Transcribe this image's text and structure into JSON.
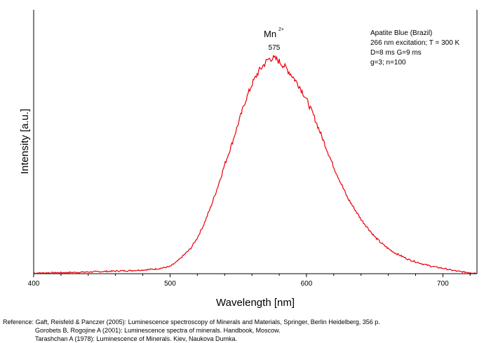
{
  "chart_data": {
    "type": "line",
    "title": "",
    "xlabel": "Wavelength [nm]",
    "ylabel": "Intensity [a.u.]",
    "xlim": [
      400,
      725
    ],
    "ylim": [
      0,
      1
    ],
    "y_ticks_labeled": false,
    "grid": false,
    "xticks": [
      400,
      500,
      600,
      700
    ],
    "line_color": "#e8000b",
    "series": [
      {
        "values_x": [
          400,
          410,
          420,
          430,
          440,
          450,
          460,
          470,
          480,
          490,
          495,
          500,
          505,
          510,
          515,
          520,
          525,
          530,
          535,
          540,
          545,
          550,
          555,
          560,
          565,
          570,
          572,
          575,
          578,
          580,
          585,
          590,
          595,
          600,
          605,
          610,
          615,
          620,
          625,
          630,
          635,
          640,
          645,
          650,
          655,
          660,
          665,
          670,
          675,
          680,
          685,
          690,
          695,
          700,
          705,
          710,
          715,
          720,
          725
        ],
        "values_y": [
          0.003,
          0.004,
          0.005,
          0.006,
          0.008,
          0.01,
          0.012,
          0.014,
          0.017,
          0.022,
          0.027,
          0.033,
          0.055,
          0.085,
          0.115,
          0.165,
          0.23,
          0.31,
          0.4,
          0.5,
          0.59,
          0.69,
          0.79,
          0.87,
          0.93,
          0.97,
          0.985,
          0.99,
          0.985,
          0.975,
          0.945,
          0.905,
          0.86,
          0.8,
          0.73,
          0.65,
          0.57,
          0.49,
          0.42,
          0.35,
          0.3,
          0.25,
          0.21,
          0.17,
          0.14,
          0.115,
          0.095,
          0.08,
          0.065,
          0.055,
          0.045,
          0.037,
          0.03,
          0.025,
          0.018,
          0.012,
          0.008,
          0.005,
          0.003
        ]
      }
    ],
    "annotations": [
      {
        "ion_base": "Mn",
        "ion_charge": "2+",
        "peak_label": "575",
        "at_x": 575
      }
    ],
    "legend_text": [
      "Apatite Blue (Brazil)",
      "266 nm excitation; T = 300 K",
      "D=8 ms G=9 ms",
      "g=3; n=100"
    ]
  },
  "references": {
    "line1": "Reference: Gaft, Reisfeld & Panczer (2005): Luminescence spectroscopy of Minerals and Materials, Springer, Berlin Heidelberg, 356 p.",
    "line2": "Gorobets B, Rogojine A (2001): Luminescence spectra of minerals. Handbook, Moscow.",
    "line3": "Tarashchan A (1978): Luminescence of Minerals. Kiev, Naukova Dumka."
  }
}
